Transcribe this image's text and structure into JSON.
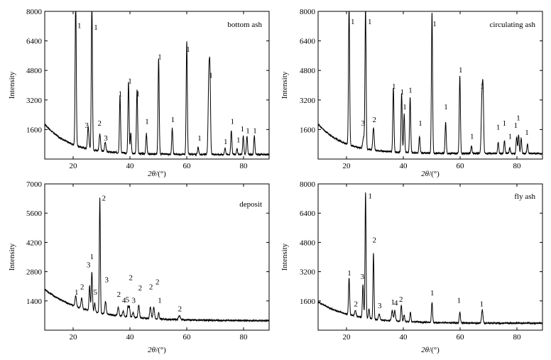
{
  "chart_data": [
    {
      "type": "line",
      "panel_label": "bottom ash",
      "xlabel_theta": "2θ",
      "xlabel_unit": "/(°)",
      "ylabel": "Intensity",
      "xlim": [
        10,
        89
      ],
      "ylim": [
        0,
        8000
      ],
      "xticks": [
        20,
        40,
        60,
        80
      ],
      "yticks": [
        1600,
        3200,
        4800,
        6400,
        8000
      ],
      "ytick_labels": [
        "1600",
        "3200",
        "4800",
        "6400",
        "8000"
      ],
      "baseline": {
        "start": 1900,
        "decay": 9,
        "end": 250,
        "noise": 90
      },
      "peaks": [
        [
          20.9,
          8000,
          0.2
        ],
        [
          25.3,
          1200,
          0.25
        ],
        [
          26.6,
          8000,
          0.2
        ],
        [
          29.4,
          900,
          0.25
        ],
        [
          31.3,
          500,
          0.25
        ],
        [
          36.5,
          3100,
          0.2
        ],
        [
          39.5,
          3900,
          0.2
        ],
        [
          40.3,
          1100,
          0.2
        ],
        [
          42.5,
          3500,
          0.2
        ],
        [
          45.8,
          1100,
          0.2
        ],
        [
          50.1,
          5200,
          0.2
        ],
        [
          54.9,
          1400,
          0.2
        ],
        [
          60.0,
          6100,
          0.2
        ],
        [
          64.0,
          400,
          0.2
        ],
        [
          67.8,
          4300,
          0.25
        ],
        [
          68.2,
          3500,
          0.2
        ],
        [
          73.5,
          350,
          0.2
        ],
        [
          75.7,
          1300,
          0.2
        ],
        [
          77.7,
          300,
          0.2
        ],
        [
          79.9,
          1000,
          0.2
        ],
        [
          81.2,
          1000,
          0.2
        ],
        [
          83.8,
          1000,
          0.2
        ]
      ],
      "labels": [
        {
          "text": "1",
          "x": 22.2,
          "y": 7100
        },
        {
          "text": "1",
          "x": 28.0,
          "y": 7000
        },
        {
          "text": "3",
          "x": 24.8,
          "y": 1700
        },
        {
          "text": "2",
          "x": 29.3,
          "y": 1800
        },
        {
          "text": "3",
          "x": 31.5,
          "y": 1000
        },
        {
          "text": "1",
          "x": 36.6,
          "y": 3400
        },
        {
          "text": "1",
          "x": 40.0,
          "y": 4100
        },
        {
          "text": "1",
          "x": 42.8,
          "y": 3400
        },
        {
          "text": "1",
          "x": 46.0,
          "y": 1900
        },
        {
          "text": "1",
          "x": 50.5,
          "y": 5400
        },
        {
          "text": "1",
          "x": 55.1,
          "y": 2000
        },
        {
          "text": "1",
          "x": 60.5,
          "y": 5800
        },
        {
          "text": "1",
          "x": 64.5,
          "y": 1000
        },
        {
          "text": "1",
          "x": 68.5,
          "y": 4400
        },
        {
          "text": "1",
          "x": 73.7,
          "y": 800
        },
        {
          "text": "1",
          "x": 76.1,
          "y": 1900
        },
        {
          "text": "1",
          "x": 78.2,
          "y": 900
        },
        {
          "text": "1",
          "x": 79.6,
          "y": 1500
        },
        {
          "text": "1",
          "x": 81.5,
          "y": 1400
        },
        {
          "text": "1",
          "x": 84.0,
          "y": 1400
        }
      ]
    },
    {
      "type": "line",
      "panel_label": "circulating ash",
      "xlabel_theta": "2θ",
      "xlabel_unit": "/(°)",
      "ylabel": "Intensity",
      "xlim": [
        10,
        89
      ],
      "ylim": [
        0,
        8000
      ],
      "xticks": [
        20,
        40,
        60,
        80
      ],
      "yticks": [
        1600,
        3200,
        4800,
        6400,
        8000
      ],
      "ytick_labels": [
        "1600",
        "3200",
        "4800",
        "6400",
        "8000"
      ],
      "baseline": {
        "start": 1900,
        "decay": 9,
        "end": 300,
        "noise": 90
      },
      "peaks": [
        [
          20.9,
          7600,
          0.2
        ],
        [
          26.0,
          600,
          0.3
        ],
        [
          26.7,
          7600,
          0.2
        ],
        [
          29.5,
          1200,
          0.25
        ],
        [
          36.5,
          3500,
          0.2
        ],
        [
          39.4,
          3200,
          0.2
        ],
        [
          40.3,
          2100,
          0.2
        ],
        [
          42.4,
          3000,
          0.2
        ],
        [
          45.7,
          900,
          0.2
        ],
        [
          50.1,
          7600,
          0.2
        ],
        [
          54.9,
          1700,
          0.2
        ],
        [
          59.9,
          4200,
          0.2
        ],
        [
          64.0,
          400,
          0.2
        ],
        [
          67.7,
          3100,
          0.25
        ],
        [
          68.1,
          2800,
          0.2
        ],
        [
          73.4,
          600,
          0.2
        ],
        [
          75.6,
          700,
          0.2
        ],
        [
          77.5,
          300,
          0.2
        ],
        [
          79.9,
          900,
          0.2
        ],
        [
          80.6,
          1000,
          0.2
        ],
        [
          81.5,
          800,
          0.2
        ],
        [
          83.7,
          500,
          0.2
        ]
      ],
      "labels": [
        {
          "text": "1",
          "x": 22.2,
          "y": 7300
        },
        {
          "text": "1",
          "x": 28.2,
          "y": 7300
        },
        {
          "text": "3",
          "x": 25.8,
          "y": 1800
        },
        {
          "text": "2",
          "x": 29.8,
          "y": 2000
        },
        {
          "text": "1",
          "x": 36.7,
          "y": 3800
        },
        {
          "text": "1",
          "x": 39.6,
          "y": 3500
        },
        {
          "text": "1",
          "x": 40.5,
          "y": 2700
        },
        {
          "text": "1",
          "x": 42.5,
          "y": 3600
        },
        {
          "text": "1",
          "x": 46.0,
          "y": 1800
        },
        {
          "text": "1",
          "x": 51.0,
          "y": 7200
        },
        {
          "text": "1",
          "x": 55.0,
          "y": 2700
        },
        {
          "text": "1",
          "x": 60.2,
          "y": 4700
        },
        {
          "text": "1",
          "x": 64.2,
          "y": 1100
        },
        {
          "text": "1",
          "x": 67.7,
          "y": 3800
        },
        {
          "text": "1",
          "x": 73.4,
          "y": 1600
        },
        {
          "text": "1",
          "x": 75.6,
          "y": 1800
        },
        {
          "text": "1",
          "x": 77.6,
          "y": 1100
        },
        {
          "text": "1",
          "x": 79.6,
          "y": 1700
        },
        {
          "text": "1",
          "x": 80.5,
          "y": 2100
        },
        {
          "text": "1",
          "x": 83.5,
          "y": 1300
        }
      ]
    },
    {
      "type": "line",
      "panel_label": "deposit",
      "xlabel_theta": "2θ",
      "xlabel_unit": "/(°)",
      "ylabel": "Intensity",
      "xlim": [
        10,
        89
      ],
      "ylim": [
        0,
        7000
      ],
      "xticks": [
        20,
        40,
        60,
        80
      ],
      "yticks": [
        1400,
        2800,
        4200,
        5600,
        7000
      ],
      "ytick_labels": [
        "1400",
        "2800",
        "4200",
        "5600",
        "7000"
      ],
      "baseline": {
        "start": 1950,
        "decay": 14,
        "end": 450,
        "noise": 70
      },
      "peaks": [
        [
          20.9,
          500,
          0.25
        ],
        [
          23.0,
          500,
          0.25
        ],
        [
          25.8,
          1200,
          0.2
        ],
        [
          26.6,
          1900,
          0.2
        ],
        [
          27.6,
          400,
          0.2
        ],
        [
          29.4,
          5500,
          0.18
        ],
        [
          31.4,
          600,
          0.25
        ],
        [
          35.9,
          400,
          0.25
        ],
        [
          37.6,
          250,
          0.25
        ],
        [
          39.3,
          500,
          0.2
        ],
        [
          39.8,
          500,
          0.2
        ],
        [
          41.1,
          250,
          0.25
        ],
        [
          43.1,
          600,
          0.25
        ],
        [
          47.2,
          550,
          0.25
        ],
        [
          48.4,
          550,
          0.25
        ],
        [
          50.1,
          300,
          0.2
        ],
        [
          57.4,
          200,
          0.3
        ]
      ],
      "labels": [
        {
          "text": "1",
          "x": 21.2,
          "y": 1700
        },
        {
          "text": "2",
          "x": 23.2,
          "y": 1950
        },
        {
          "text": "3",
          "x": 25.4,
          "y": 3000
        },
        {
          "text": "1",
          "x": 26.6,
          "y": 3400
        },
        {
          "text": "5",
          "x": 27.8,
          "y": 1700
        },
        {
          "text": "2",
          "x": 30.8,
          "y": 6200
        },
        {
          "text": "3",
          "x": 31.8,
          "y": 2300
        },
        {
          "text": "2",
          "x": 36.1,
          "y": 1600
        },
        {
          "text": "4",
          "x": 37.9,
          "y": 1300
        },
        {
          "text": "5",
          "x": 39.1,
          "y": 1350
        },
        {
          "text": "2",
          "x": 40.3,
          "y": 2400
        },
        {
          "text": "3",
          "x": 41.3,
          "y": 1300
        },
        {
          "text": "2",
          "x": 43.6,
          "y": 1900
        },
        {
          "text": "2",
          "x": 47.4,
          "y": 1950
        },
        {
          "text": "2",
          "x": 49.7,
          "y": 2200
        },
        {
          "text": "1",
          "x": 50.5,
          "y": 1300
        },
        {
          "text": "2",
          "x": 57.6,
          "y": 900
        }
      ]
    },
    {
      "type": "line",
      "panel_label": "fly ash",
      "xlabel_theta": "2θ",
      "xlabel_unit": "/(°)",
      "ylabel": "Intensity",
      "xlim": [
        10,
        89
      ],
      "ylim": [
        0,
        8000
      ],
      "xticks": [
        20,
        40,
        60,
        80
      ],
      "yticks": [
        1600,
        3200,
        4800,
        6400,
        8000
      ],
      "ytick_labels": [
        "1600",
        "3200",
        "4800",
        "6400",
        "8000"
      ],
      "baseline": {
        "start": 1550,
        "decay": 12,
        "end": 380,
        "noise": 80
      },
      "peaks": [
        [
          20.9,
          2000,
          0.2
        ],
        [
          23.1,
          300,
          0.25
        ],
        [
          25.8,
          1800,
          0.2
        ],
        [
          26.7,
          6900,
          0.18
        ],
        [
          27.9,
          500,
          0.2
        ],
        [
          29.5,
          3600,
          0.18
        ],
        [
          31.5,
          300,
          0.25
        ],
        [
          36.1,
          550,
          0.25
        ],
        [
          37.0,
          550,
          0.25
        ],
        [
          39.3,
          900,
          0.2
        ],
        [
          40.3,
          350,
          0.2
        ],
        [
          42.5,
          500,
          0.2
        ],
        [
          50.1,
          1100,
          0.2
        ],
        [
          59.9,
          600,
          0.2
        ],
        [
          67.8,
          700,
          0.25
        ]
      ],
      "labels": [
        {
          "text": "1",
          "x": 21.0,
          "y": 3000
        },
        {
          "text": "2",
          "x": 23.3,
          "y": 1300
        },
        {
          "text": "3",
          "x": 25.6,
          "y": 2800
        },
        {
          "text": "1",
          "x": 28.3,
          "y": 7200
        },
        {
          "text": "2",
          "x": 29.8,
          "y": 4800
        },
        {
          "text": "3",
          "x": 31.7,
          "y": 1200
        },
        {
          "text": "1",
          "x": 36.3,
          "y": 1400
        },
        {
          "text": "4",
          "x": 37.4,
          "y": 1350
        },
        {
          "text": "2",
          "x": 39.2,
          "y": 1550
        },
        {
          "text": "1",
          "x": 50.2,
          "y": 1900
        },
        {
          "text": "1",
          "x": 59.6,
          "y": 1500
        },
        {
          "text": "1",
          "x": 67.6,
          "y": 1300
        }
      ]
    }
  ]
}
